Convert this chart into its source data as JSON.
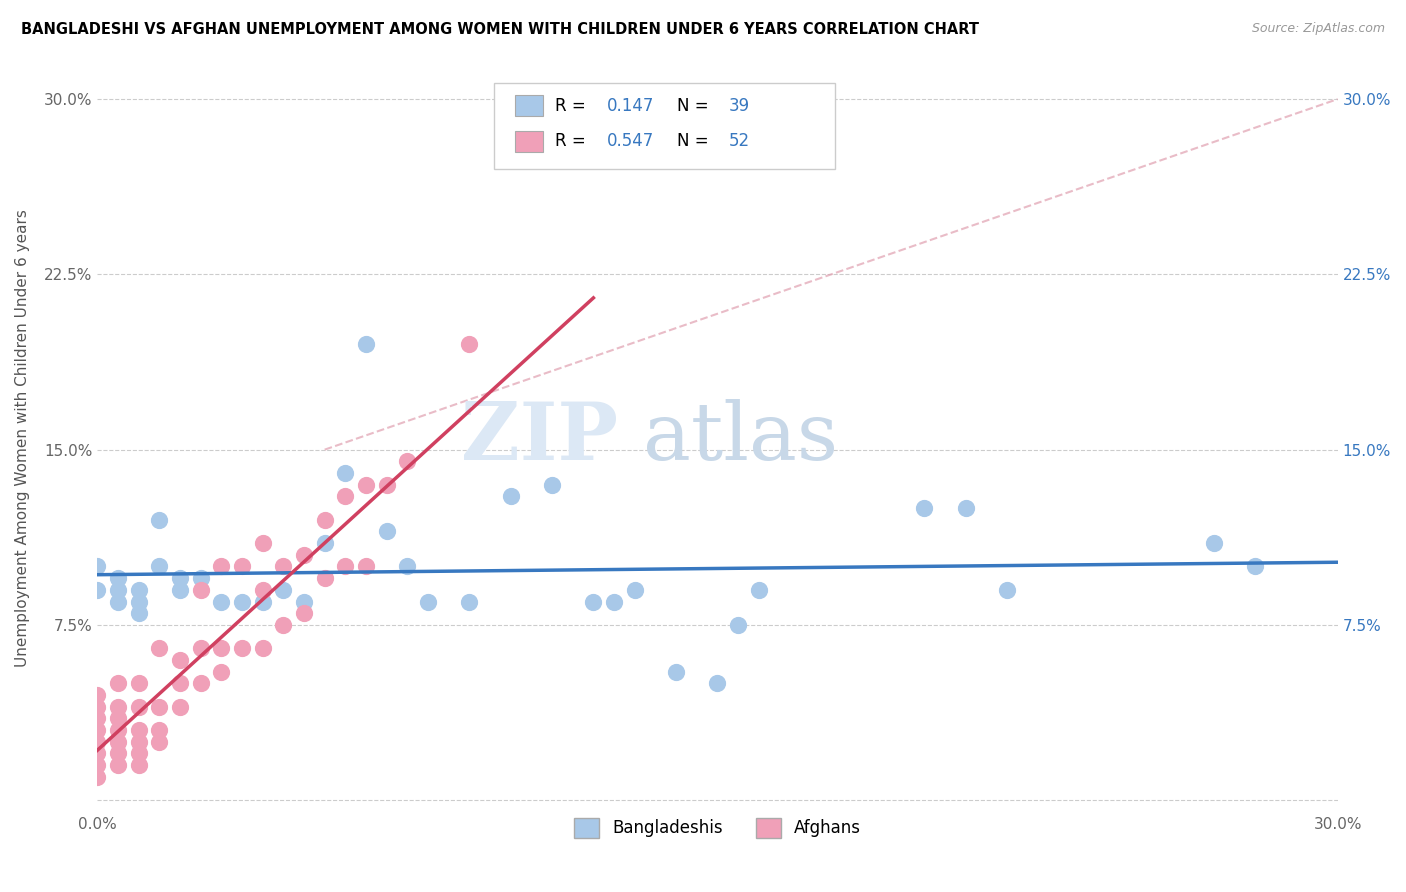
{
  "title": "BANGLADESHI VS AFGHAN UNEMPLOYMENT AMONG WOMEN WITH CHILDREN UNDER 6 YEARS CORRELATION CHART",
  "source": "Source: ZipAtlas.com",
  "ylabel": "Unemployment Among Women with Children Under 6 years",
  "xlim": [
    0.0,
    0.3
  ],
  "ylim": [
    -0.005,
    0.315
  ],
  "ytick_vals": [
    0.0,
    0.075,
    0.15,
    0.225,
    0.3
  ],
  "ytick_labels_left": [
    "",
    "7.5%",
    "15.0%",
    "22.5%",
    "30.0%"
  ],
  "ytick_labels_right": [
    "",
    "7.5%",
    "15.0%",
    "22.5%",
    "30.0%"
  ],
  "xtick_vals": [
    0.0,
    0.05,
    0.1,
    0.15,
    0.2,
    0.25,
    0.3
  ],
  "xtick_labels": [
    "0.0%",
    "",
    "",
    "",
    "",
    "",
    "30.0%"
  ],
  "bangladeshi_r": 0.147,
  "bangladeshi_n": 39,
  "afghan_r": 0.547,
  "afghan_n": 52,
  "scatter_blue_color": "#a8c8e8",
  "scatter_pink_color": "#f0a0b8",
  "line_blue_color": "#3878c0",
  "line_pink_color": "#d04060",
  "right_tick_color": "#3878c0",
  "bangladeshi_x": [
    0.0,
    0.0,
    0.005,
    0.005,
    0.005,
    0.01,
    0.01,
    0.01,
    0.015,
    0.015,
    0.02,
    0.02,
    0.025,
    0.03,
    0.035,
    0.04,
    0.045,
    0.05,
    0.055,
    0.06,
    0.065,
    0.07,
    0.075,
    0.08,
    0.09,
    0.1,
    0.11,
    0.12,
    0.125,
    0.13,
    0.14,
    0.15,
    0.155,
    0.16,
    0.2,
    0.21,
    0.22,
    0.27,
    0.28
  ],
  "bangladeshi_y": [
    0.09,
    0.1,
    0.085,
    0.09,
    0.095,
    0.08,
    0.085,
    0.09,
    0.1,
    0.12,
    0.09,
    0.095,
    0.095,
    0.085,
    0.085,
    0.085,
    0.09,
    0.085,
    0.11,
    0.14,
    0.195,
    0.115,
    0.1,
    0.085,
    0.085,
    0.13,
    0.135,
    0.085,
    0.085,
    0.09,
    0.055,
    0.05,
    0.075,
    0.09,
    0.125,
    0.125,
    0.09,
    0.11,
    0.1
  ],
  "afghan_x": [
    0.0,
    0.0,
    0.0,
    0.0,
    0.0,
    0.0,
    0.0,
    0.0,
    0.005,
    0.005,
    0.005,
    0.005,
    0.005,
    0.005,
    0.005,
    0.01,
    0.01,
    0.01,
    0.01,
    0.01,
    0.01,
    0.015,
    0.015,
    0.015,
    0.015,
    0.02,
    0.02,
    0.02,
    0.025,
    0.025,
    0.025,
    0.03,
    0.03,
    0.03,
    0.035,
    0.035,
    0.04,
    0.04,
    0.04,
    0.045,
    0.045,
    0.05,
    0.05,
    0.055,
    0.055,
    0.06,
    0.06,
    0.065,
    0.065,
    0.07,
    0.075,
    0.09
  ],
  "afghan_y": [
    0.01,
    0.015,
    0.02,
    0.025,
    0.03,
    0.035,
    0.04,
    0.045,
    0.015,
    0.02,
    0.025,
    0.03,
    0.035,
    0.04,
    0.05,
    0.015,
    0.02,
    0.025,
    0.03,
    0.04,
    0.05,
    0.025,
    0.03,
    0.04,
    0.065,
    0.04,
    0.05,
    0.06,
    0.05,
    0.065,
    0.09,
    0.055,
    0.065,
    0.1,
    0.065,
    0.1,
    0.065,
    0.09,
    0.11,
    0.075,
    0.1,
    0.08,
    0.105,
    0.095,
    0.12,
    0.1,
    0.13,
    0.1,
    0.135,
    0.135,
    0.145,
    0.195
  ],
  "diag_line_x": [
    0.055,
    0.3
  ],
  "diag_line_y": [
    0.15,
    0.3
  ]
}
